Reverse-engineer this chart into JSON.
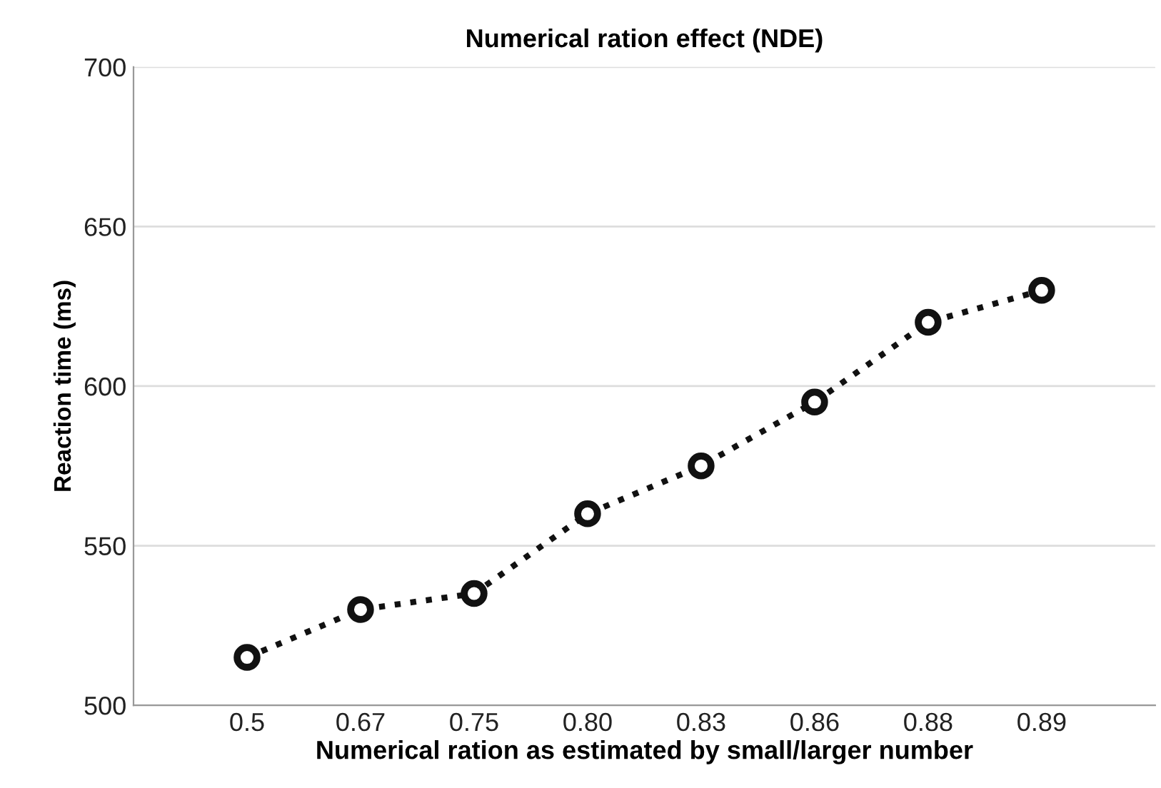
{
  "chart_data": {
    "type": "line",
    "title": "Numerical ration effect (NDE)",
    "xlabel": "Numerical ration as estimated by small/larger number",
    "ylabel": "Reaction time (ms)",
    "categories": [
      "0.5",
      "0.67",
      "0.75",
      "0.80",
      "0.83",
      "0.86",
      "0.88",
      "0.89"
    ],
    "series": [
      {
        "color": "#111111",
        "values": [
          515,
          530,
          535,
          560,
          575,
          595,
          620,
          630
        ]
      }
    ],
    "ylim": [
      500,
      700
    ],
    "yticks": [
      500,
      550,
      600,
      650,
      700
    ],
    "grid": "y",
    "marker": "circle",
    "line_style": "dotted"
  }
}
